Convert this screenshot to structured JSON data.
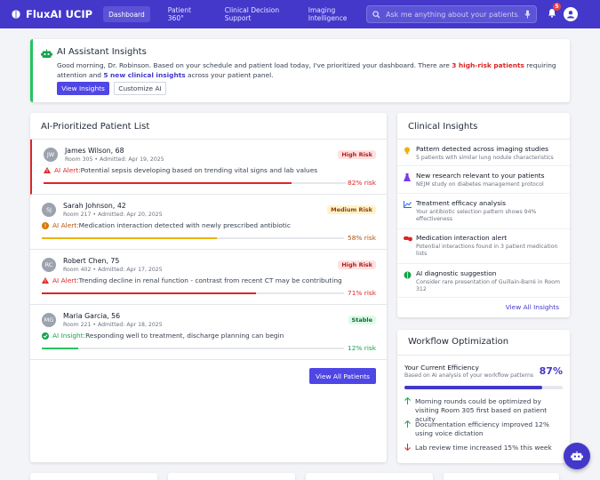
{
  "app": {
    "name": "FluxAI UCIP"
  },
  "nav": [
    {
      "label": "Dashboard",
      "active": true
    },
    {
      "label": "Patient 360°",
      "active": false
    },
    {
      "label": "Clinical Decision Support",
      "active": false
    },
    {
      "label": "Imaging Intelligence",
      "active": false
    }
  ],
  "search": {
    "placeholder": "Ask me anything about your patients..."
  },
  "notifications": {
    "count": "5"
  },
  "banner": {
    "title": "AI Assistant Insights",
    "text_1": "Good morning, Dr. Robinson. Based on your schedule and patient load today, I've prioritized your dashboard. There are ",
    "risk_count": "3 high-risk patients",
    "text_2": " requiring attention and ",
    "insight_count": "5 new clinical insights",
    "text_3": " across your patient panel.",
    "btn_view": "View Insights",
    "btn_customize": "Customize AI"
  },
  "patients": {
    "title": "AI-Prioritized Patient List",
    "view_all": "View All Patients",
    "items": [
      {
        "initials": "JW",
        "name": "James Wilson, 68",
        "meta": "Room 305 • Admitted: Apr 19, 2025",
        "badge": "High Risk",
        "alert_label": "AI Alert:",
        "alert_text": " Potential sepsis developing based on trending vital signs and lab values",
        "risk": "82% risk",
        "risk_value": 82,
        "color": "#dc2626"
      },
      {
        "initials": "SJ",
        "name": "Sarah Johnson, 42",
        "meta": "Room 217 • Admitted: Apr 20, 2025",
        "badge": "Medium Risk",
        "alert_label": "AI Alert:",
        "alert_text": " Medication interaction detected with newly prescribed antibiotic",
        "risk": "58% risk",
        "risk_value": 58,
        "color": "#eab308"
      },
      {
        "initials": "RC",
        "name": "Robert Chen, 75",
        "meta": "Room 402 • Admitted: Apr 17, 2025",
        "badge": "High Risk",
        "alert_label": "AI Alert:",
        "alert_text": " Trending decline in renal function - contrast from recent CT may be contributing",
        "risk": "71% risk",
        "risk_value": 71,
        "color": "#dc2626"
      },
      {
        "initials": "MG",
        "name": "Maria Garcia, 56",
        "meta": "Room 221 • Admitted: Apr 18, 2025",
        "badge": "Stable",
        "alert_label": "AI Insight:",
        "alert_text": " Responding well to treatment, discharge planning can begin",
        "risk": "12% risk",
        "risk_value": 12,
        "color": "#22c55e"
      }
    ]
  },
  "insights": {
    "title": "Clinical Insights",
    "view_all": "View All Insights",
    "items": [
      {
        "icon": "lightbulb-icon",
        "title": "Pattern detected across imaging studies",
        "sub": "5 patients with similar lung nodule characteristics"
      },
      {
        "icon": "flask-icon",
        "title": "New research relevant to your patients",
        "sub": "NEJM study on diabetes management protocol"
      },
      {
        "icon": "chart-line-icon",
        "title": "Treatment efficacy analysis",
        "sub": "Your antibiotic selection pattern shows 94% effectiveness"
      },
      {
        "icon": "pills-icon",
        "title": "Medication interaction alert",
        "sub": "Potential interactions found in 3 patient medication lists"
      },
      {
        "icon": "brain-icon",
        "title": "AI diagnostic suggestion",
        "sub": "Consider rare presentation of Guillain-Barré in Room 312"
      }
    ]
  },
  "workflow": {
    "title": "Workflow Optimization",
    "efficiency_label": "Your Current Efficiency",
    "efficiency_sub": "Based on AI analysis of your workflow patterns",
    "efficiency_pct": "87%",
    "efficiency_value": 87,
    "items": [
      {
        "dir": "up",
        "text": "Morning rounds could be optimized by visiting Room 305 first based on patient acuity"
      },
      {
        "dir": "up",
        "text": "Documentation efficiency improved 12% using voice dictation"
      },
      {
        "dir": "down",
        "text": "Lab review time increased 15% this week"
      }
    ]
  }
}
